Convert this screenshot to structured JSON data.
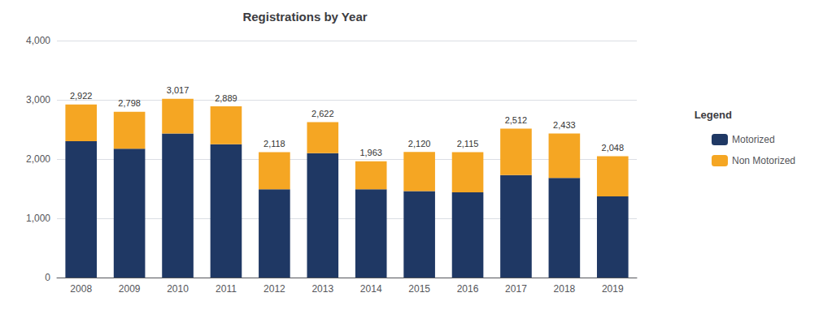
{
  "chart_data": {
    "type": "bar",
    "title": "Registrations by Year",
    "categories": [
      "2008",
      "2009",
      "2010",
      "2011",
      "2012",
      "2013",
      "2014",
      "2015",
      "2016",
      "2017",
      "2018",
      "2019"
    ],
    "series": [
      {
        "name": "Motorized",
        "color": "#1F3864",
        "values": [
          2300,
          2175,
          2430,
          2250,
          1490,
          2100,
          1490,
          1460,
          1440,
          1730,
          1680,
          1370
        ]
      },
      {
        "name": "Non Motorized",
        "color": "#F5A623",
        "values": [
          622,
          623,
          587,
          639,
          628,
          522,
          473,
          660,
          675,
          782,
          753,
          678
        ]
      }
    ],
    "totals": [
      2922,
      2798,
      3017,
      2889,
      2118,
      2622,
      1963,
      2120,
      2115,
      2512,
      2433,
      2048
    ],
    "total_labels": [
      "2,922",
      "2,798",
      "3,017",
      "2,889",
      "2,118",
      "2,622",
      "1,963",
      "2,120",
      "2,115",
      "2,512",
      "2,433",
      "2,048"
    ],
    "stacked": true,
    "ylim": [
      0,
      4000
    ],
    "yticks": [
      0,
      {
        "value": 1000,
        "label": "1,000"
      },
      {
        "value": 2000,
        "label": "2,000"
      },
      {
        "value": 3000,
        "label": "3,000"
      },
      {
        "value": 4000,
        "label": "4,000"
      }
    ],
    "grid": true,
    "legend": "right",
    "legend_title": "Legend"
  }
}
